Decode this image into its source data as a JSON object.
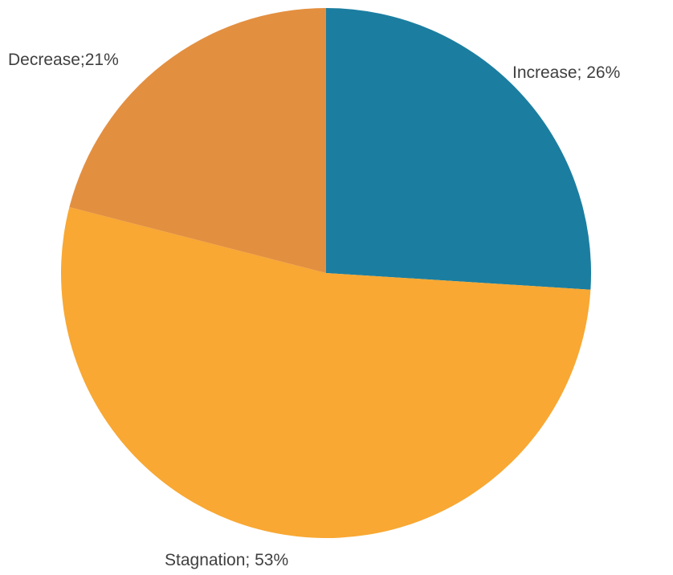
{
  "chart_data": {
    "type": "pie",
    "slices": [
      {
        "label": "Increase; 26%",
        "value": 26,
        "color": "#1b7ea0"
      },
      {
        "label": "Stagnation; 53%",
        "value": 53,
        "color": "#f8a833"
      },
      {
        "label": "Decrease;21%",
        "value": 21,
        "color": "#e38f40"
      }
    ],
    "start": "12 o'clock",
    "direction": "clockwise",
    "legend": "none"
  }
}
